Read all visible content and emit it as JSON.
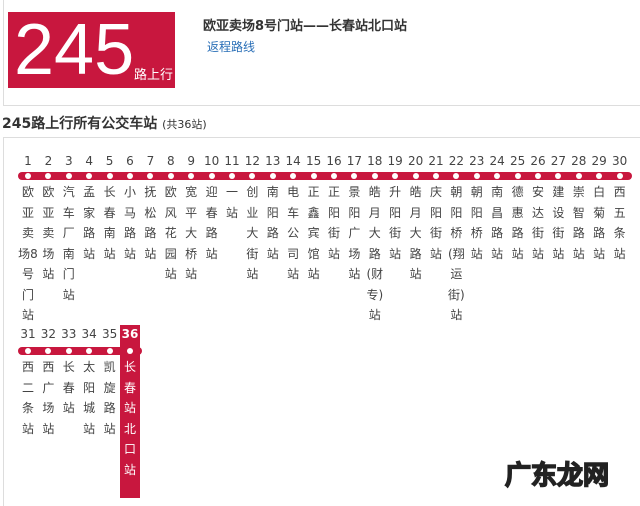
{
  "header": {
    "route_number": "245",
    "direction": "路上行",
    "route": "欧亚卖场8号门站——长春站北口站",
    "return_link": "返程路线"
  },
  "section": {
    "title": "245路上行所有公交车站",
    "count": "(共36站)"
  },
  "accent_color": "#c8173e",
  "stations": [
    "欧亚卖场8号门站",
    "欧亚卖场站",
    "汽车厂南门站",
    "孟家路站",
    "长春南站",
    "小马路站",
    "抚松路站",
    "欧风花园站",
    "宽平大桥站",
    "迎春路站",
    "一站",
    "创业大街站",
    "南阳路站",
    "电车公司站",
    "正鑫宾馆站",
    "正阳街站",
    "景阳广场站",
    "皓月大路(财专)站",
    "升阳街站",
    "皓月大路站",
    "庆阳街站",
    "朝阳桥(翔运街)站",
    "朝阳桥站",
    "南昌路站",
    "德惠路站",
    "安达街站",
    "建设街站",
    "崇智路站",
    "白菊路站",
    "西五条站",
    "西二条站",
    "西广场站",
    "长春站",
    "太阳城站",
    "凯旋路站",
    "长春站北口站"
  ],
  "current_station": 36,
  "watermark": "广东龙网"
}
